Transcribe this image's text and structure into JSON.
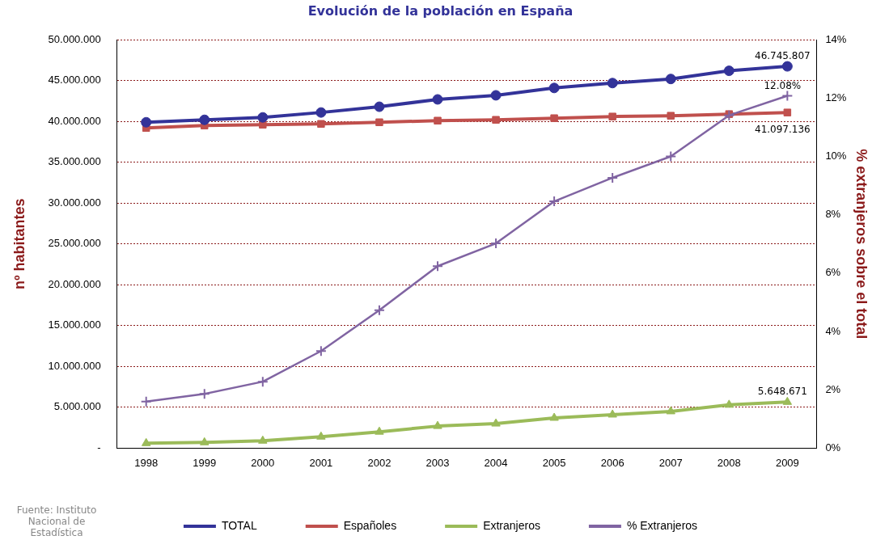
{
  "chart_data": {
    "type": "line",
    "title": "Evolución de la población en España",
    "ylabel": "nº habitantes",
    "y2label": "% extranjeros sobre el total",
    "categories": [
      "1998",
      "1999",
      "2000",
      "2001",
      "2002",
      "2003",
      "2004",
      "2005",
      "2006",
      "2007",
      "2008",
      "2009"
    ],
    "series": [
      {
        "name": "TOTAL",
        "color": "#333399",
        "marker": "circle",
        "values": [
          39900000,
          40200000,
          40500000,
          41100000,
          41800000,
          42700000,
          43200000,
          44100000,
          44700000,
          45200000,
          46200000,
          46745807
        ],
        "value_labels": [
          null,
          null,
          null,
          null,
          null,
          null,
          null,
          null,
          null,
          null,
          null,
          "46.745.807"
        ]
      },
      {
        "name": "Españoles",
        "color": "#c0504d",
        "marker": "square",
        "values": [
          39200000,
          39500000,
          39600000,
          39700000,
          39900000,
          40100000,
          40200000,
          40400000,
          40600000,
          40700000,
          40900000,
          41097136
        ],
        "value_labels": [
          null,
          null,
          null,
          null,
          null,
          null,
          null,
          null,
          null,
          null,
          null,
          "41.097.136"
        ]
      },
      {
        "name": "Extranjeros",
        "color": "#9bbb59",
        "marker": "triangle",
        "values": [
          600000,
          700000,
          900000,
          1400000,
          2000000,
          2700000,
          3000000,
          3700000,
          4100000,
          4500000,
          5300000,
          5648671
        ],
        "value_labels": [
          null,
          null,
          null,
          null,
          null,
          null,
          null,
          null,
          null,
          null,
          null,
          "5.648.671"
        ]
      },
      {
        "name": "% Extranjeros",
        "color": "#8064a2",
        "marker": "cross",
        "axis": "y2",
        "values": [
          1.6,
          1.86,
          2.28,
          3.33,
          4.73,
          6.24,
          7.02,
          8.46,
          9.27,
          10.0,
          11.41,
          12.08
        ],
        "value_labels": [
          null,
          null,
          null,
          null,
          null,
          null,
          null,
          null,
          null,
          null,
          null,
          "12.08%"
        ]
      }
    ],
    "ylim": [
      0,
      50000000
    ],
    "yticks": [
      {
        "value": 0,
        "label": "-"
      },
      {
        "value": 5000000,
        "label": "5.000.000"
      },
      {
        "value": 10000000,
        "label": "10.000.000"
      },
      {
        "value": 15000000,
        "label": "15.000.000"
      },
      {
        "value": 20000000,
        "label": "20.000.000"
      },
      {
        "value": 25000000,
        "label": "25.000.000"
      },
      {
        "value": 30000000,
        "label": "30.000.000"
      },
      {
        "value": 35000000,
        "label": "35.000.000"
      },
      {
        "value": 40000000,
        "label": "40.000.000"
      },
      {
        "value": 45000000,
        "label": "45.000.000"
      },
      {
        "value": 50000000,
        "label": "50.000.000"
      }
    ],
    "y2lim": [
      0,
      14
    ],
    "y2ticks": [
      {
        "value": 0,
        "label": "0%"
      },
      {
        "value": 2,
        "label": "2%"
      },
      {
        "value": 4,
        "label": "4%"
      },
      {
        "value": 6,
        "label": "6%"
      },
      {
        "value": 8,
        "label": "8%"
      },
      {
        "value": 10,
        "label": "10%"
      },
      {
        "value": 12,
        "label": "12%"
      },
      {
        "value": 14,
        "label": "14%"
      }
    ],
    "grid": "y",
    "legend": "bottom",
    "line_style": "solid",
    "annotations": [
      "Fuente: Instituto Nacional de Estadística"
    ]
  }
}
